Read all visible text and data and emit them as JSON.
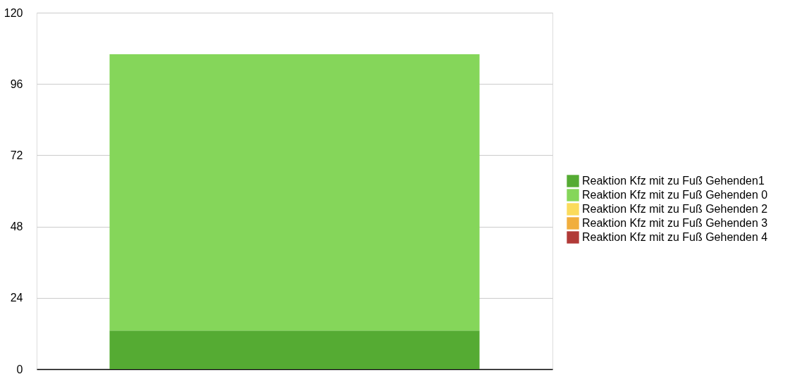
{
  "chart_data": {
    "type": "bar",
    "categories": [
      null
    ],
    "stacked": true,
    "series": [
      {
        "name": "Reaktion Kfz mit zu Fuß Gehenden1",
        "color": "#55ab33",
        "values": [
          13
        ]
      },
      {
        "name": "Reaktion Kfz mit zu Fuß Gehenden 0",
        "color": "#85d65a",
        "values": [
          93
        ]
      },
      {
        "name": "Reaktion Kfz mit zu Fuß Gehenden 2",
        "color": "#fbdb5c",
        "values": [
          0
        ]
      },
      {
        "name": "Reaktion Kfz mit zu Fuß Gehenden 3",
        "color": "#f1ae3d",
        "values": [
          0
        ]
      },
      {
        "name": "Reaktion Kfz mit zu Fuß Gehenden 4",
        "color": "#b13a37",
        "values": [
          0
        ]
      }
    ],
    "ylim": [
      0,
      120
    ],
    "yticks": [
      0,
      24,
      48,
      72,
      96,
      120
    ],
    "grid": "y",
    "legend": "right"
  }
}
